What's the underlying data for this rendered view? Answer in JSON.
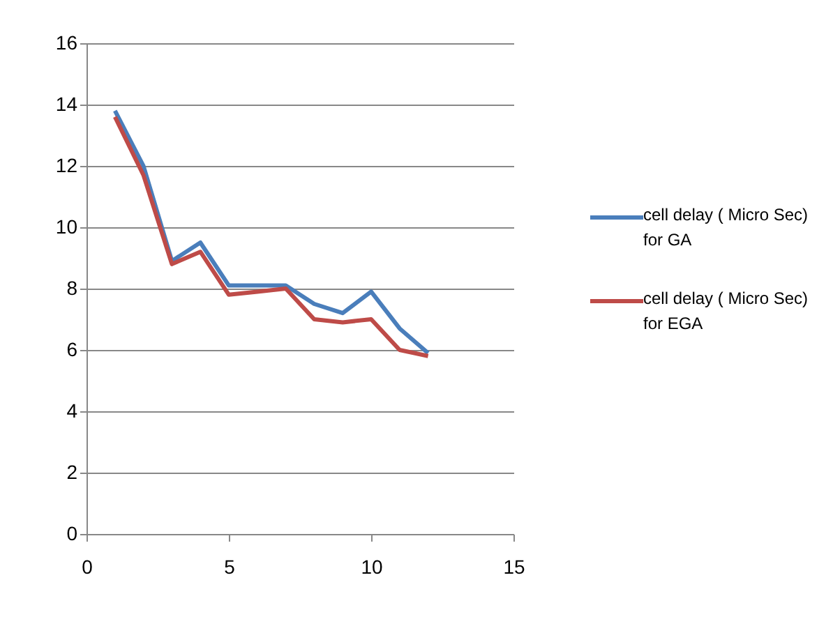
{
  "chart_data": {
    "type": "line",
    "x": [
      1,
      2,
      3,
      4,
      5,
      6,
      7,
      8,
      9,
      10,
      11,
      12
    ],
    "series": [
      {
        "name": "cell delay ( Micro Sec) for GA",
        "color": "#4a7ebb",
        "values": [
          13.8,
          12.0,
          8.9,
          9.5,
          8.1,
          8.1,
          8.1,
          7.5,
          7.2,
          7.9,
          6.7,
          5.9
        ]
      },
      {
        "name": "cell delay ( Micro Sec) for EGA",
        "color": "#be4b48",
        "values": [
          13.6,
          11.7,
          8.8,
          9.2,
          7.8,
          7.9,
          8.0,
          7.0,
          6.9,
          7.0,
          6.0,
          5.8
        ]
      }
    ],
    "xlim": [
      0,
      15
    ],
    "xticks": [
      0,
      5,
      10,
      15
    ],
    "ylim": [
      0,
      16
    ],
    "yticks": [
      0,
      2,
      4,
      6,
      8,
      10,
      12,
      14,
      16
    ],
    "grid": "y",
    "legend": "right",
    "marker": "none",
    "line_style": "solid"
  }
}
